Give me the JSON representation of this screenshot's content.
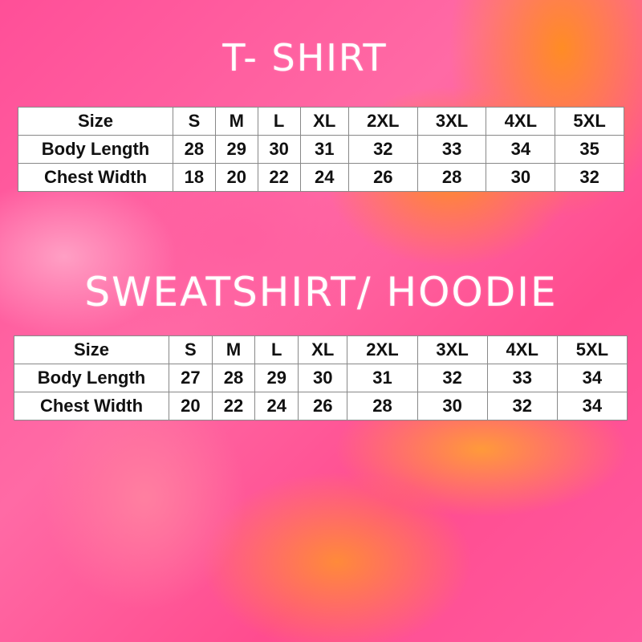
{
  "tshirt": {
    "title": "T- SHIRT",
    "header": [
      "Size",
      "S",
      "M",
      "L",
      "XL",
      "2XL",
      "3XL",
      "4XL",
      "5XL"
    ],
    "rows": [
      [
        "Body Length",
        "28",
        "29",
        "30",
        "31",
        "32",
        "33",
        "34",
        "35"
      ],
      [
        "Chest Width",
        "18",
        "20",
        "22",
        "24",
        "26",
        "28",
        "30",
        "32"
      ]
    ]
  },
  "hoodie": {
    "title": "SWEATSHIRT/ HOODIE",
    "header": [
      "Size",
      "S",
      "M",
      "L",
      "XL",
      "2XL",
      "3XL",
      "4XL",
      "5XL"
    ],
    "rows": [
      [
        "Body Length",
        "27",
        "28",
        "29",
        "30",
        "31",
        "32",
        "33",
        "34"
      ],
      [
        "Chest Width",
        "20",
        "22",
        "24",
        "26",
        "28",
        "30",
        "32",
        "34"
      ]
    ]
  },
  "colors": {
    "pink": "#ff4f98",
    "orange": "#ff8a2a",
    "title": "#ffffff"
  }
}
